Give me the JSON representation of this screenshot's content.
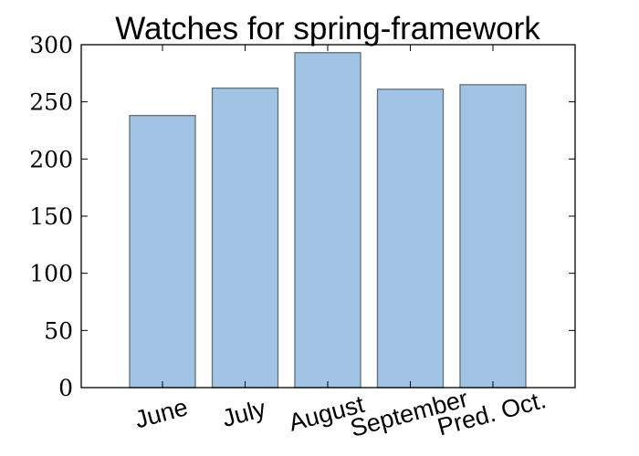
{
  "chart_data": {
    "type": "bar",
    "title": "Watches for spring-framework",
    "xlabel": "",
    "ylabel": "",
    "categories": [
      "June",
      "July",
      "August",
      "September",
      "Pred. Oct."
    ],
    "values": [
      238,
      262,
      293,
      261,
      265
    ],
    "ylim": [
      0,
      300
    ],
    "yticks": [
      0,
      50,
      100,
      150,
      200,
      250,
      300
    ],
    "grid": false,
    "bar_color": "#a2c4e4",
    "bar_edge_color": "#5f6f7c"
  }
}
